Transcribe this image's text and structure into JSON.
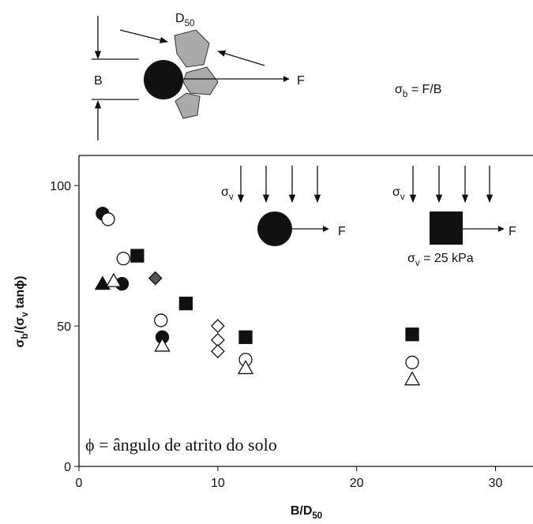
{
  "chart_data": {
    "type": "scatter",
    "x_label": [
      "B/D",
      "50"
    ],
    "y_label": [
      "σ",
      "b",
      "/(σ",
      "v",
      " tanϕ)"
    ],
    "xlim": [
      0,
      32.7
    ],
    "ylim": [
      0,
      110.7
    ],
    "xticks": [
      0,
      10,
      20,
      30
    ],
    "yticks": [
      0,
      50,
      100
    ],
    "series": [
      {
        "marker": "circle",
        "color": "#111111",
        "x": [
          1.7,
          3.1,
          6.0
        ],
        "values": [
          90,
          65,
          46
        ]
      },
      {
        "marker": "circle",
        "color": "#ffffff",
        "x": [
          2.1,
          3.2,
          5.9,
          12.0,
          24.0
        ],
        "values": [
          88,
          74,
          52,
          38,
          37
        ]
      },
      {
        "marker": "square",
        "color": "#111111",
        "x": [
          4.2,
          7.7,
          12.0,
          24.0
        ],
        "values": [
          75,
          58,
          46,
          47
        ]
      },
      {
        "marker": "triangle",
        "color": "#111111",
        "x": [
          1.7
        ],
        "values": [
          65
        ]
      },
      {
        "marker": "triangle",
        "color": "#ffffff",
        "x": [
          2.5,
          6.0,
          12.0,
          24.0
        ],
        "values": [
          66,
          43,
          35,
          31
        ]
      },
      {
        "marker": "diamond",
        "color": "#555555",
        "x": [
          5.5
        ],
        "values": [
          67
        ]
      },
      {
        "marker": "diamond",
        "color": "#ffffff",
        "x": [
          10.0,
          10.0,
          10.0
        ],
        "values": [
          50,
          45,
          41
        ]
      }
    ],
    "diagram": {
      "d": [
        "D",
        "50"
      ],
      "b": "B",
      "f": "F",
      "eq": [
        "σ",
        "b",
        " = F/B"
      ]
    },
    "insets": {
      "sv1": [
        "σ",
        "v"
      ],
      "f1": "F",
      "sv2": [
        "σ",
        "v"
      ],
      "f2": "F",
      "load": [
        "σ",
        "v",
        " = 25 kPa"
      ]
    },
    "note": "ϕ = ângulo de atrito do solo"
  }
}
